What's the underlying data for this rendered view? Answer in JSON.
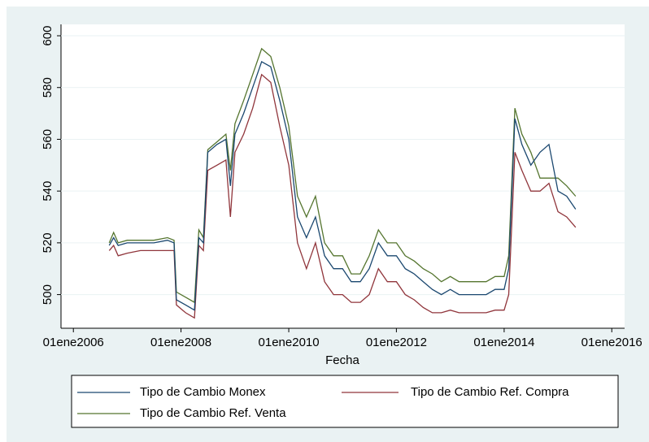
{
  "chart_data": {
    "type": "line",
    "x_label": "Fecha",
    "x": [
      "2006-09-01",
      "2006-10-01",
      "2006-11-01",
      "2007-01-01",
      "2007-04-01",
      "2007-07-01",
      "2007-10-01",
      "2007-11-15",
      "2007-12-01",
      "2008-02-01",
      "2008-04-01",
      "2008-05-01",
      "2008-06-01",
      "2008-07-01",
      "2008-09-01",
      "2008-11-01",
      "2008-12-01",
      "2009-01-01",
      "2009-03-01",
      "2009-05-01",
      "2009-07-01",
      "2009-09-01",
      "2009-11-01",
      "2010-01-01",
      "2010-03-01",
      "2010-05-01",
      "2010-07-01",
      "2010-09-01",
      "2010-11-01",
      "2011-01-01",
      "2011-03-01",
      "2011-05-01",
      "2011-07-01",
      "2011-09-01",
      "2011-11-01",
      "2012-01-01",
      "2012-03-01",
      "2012-05-01",
      "2012-07-01",
      "2012-09-01",
      "2012-11-01",
      "2013-01-01",
      "2013-03-01",
      "2013-05-01",
      "2013-07-01",
      "2013-09-01",
      "2013-11-01",
      "2014-01-01",
      "2014-02-01",
      "2014-03-15",
      "2014-05-01",
      "2014-07-01",
      "2014-09-01",
      "2014-11-01",
      "2015-01-01",
      "2015-03-01",
      "2015-05-01"
    ],
    "series": [
      {
        "name": "Tipo de Cambio Monex",
        "color": "#1a476f",
        "values": [
          519,
          522,
          519,
          520,
          520,
          520,
          521,
          520,
          498,
          496,
          494,
          522,
          520,
          555,
          558,
          560,
          542,
          562,
          570,
          580,
          590,
          588,
          575,
          560,
          530,
          522,
          530,
          515,
          510,
          510,
          505,
          505,
          510,
          520,
          515,
          515,
          510,
          508,
          505,
          502,
          500,
          502,
          500,
          500,
          500,
          500,
          502,
          502,
          510,
          568,
          558,
          550,
          555,
          558,
          540,
          538,
          533
        ]
      },
      {
        "name": "Tipo de Cambio Ref. Compra",
        "color": "#90353b",
        "values": [
          517,
          519,
          515,
          516,
          517,
          517,
          517,
          517,
          496,
          493,
          491,
          519,
          517,
          548,
          550,
          552,
          530,
          555,
          562,
          572,
          585,
          582,
          565,
          550,
          520,
          510,
          520,
          505,
          500,
          500,
          497,
          497,
          500,
          510,
          505,
          505,
          500,
          498,
          495,
          493,
          493,
          494,
          493,
          493,
          493,
          493,
          494,
          494,
          500,
          555,
          548,
          540,
          540,
          543,
          532,
          530,
          526
        ]
      },
      {
        "name": "Tipo de Cambio Ref. Venta",
        "color": "#55752f",
        "values": [
          520,
          524,
          520,
          521,
          521,
          521,
          522,
          521,
          501,
          499,
          497,
          525,
          522,
          556,
          559,
          562,
          548,
          566,
          575,
          585,
          595,
          592,
          580,
          565,
          538,
          530,
          538,
          520,
          515,
          515,
          508,
          508,
          515,
          525,
          520,
          520,
          515,
          513,
          510,
          508,
          505,
          507,
          505,
          505,
          505,
          505,
          507,
          507,
          515,
          572,
          562,
          555,
          545,
          545,
          545,
          542,
          538
        ]
      }
    ],
    "xlim": [
      "2005-10-09",
      "2016-03-28"
    ],
    "xticks": [
      {
        "value": "2006-01-01",
        "label": "01ene2006"
      },
      {
        "value": "2008-01-01",
        "label": "01ene2008"
      },
      {
        "value": "2010-01-01",
        "label": "01ene2010"
      },
      {
        "value": "2012-01-01",
        "label": "01ene2012"
      },
      {
        "value": "2014-01-01",
        "label": "01ene2014"
      },
      {
        "value": "2016-01-01",
        "label": "01ene2016"
      }
    ],
    "ylim": [
      487,
      604.4
    ],
    "yticks": [
      500,
      520,
      540,
      560,
      580,
      600
    ],
    "grid": true
  }
}
